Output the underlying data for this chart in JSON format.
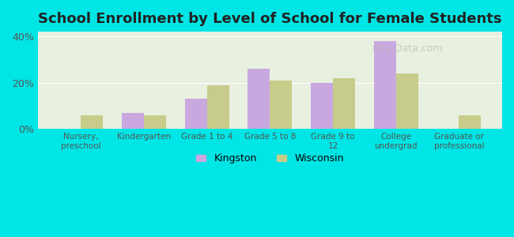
{
  "title": "School Enrollment by Level of School for Female Students",
  "categories": [
    "Nursery,\npreschool",
    "Kindergarten",
    "Grade 1 to 4",
    "Grade 5 to 8",
    "Grade 9 to\n12",
    "College\nundergrad",
    "Graduate or\nprofessional"
  ],
  "kingston": [
    0,
    7,
    13,
    26,
    20,
    38,
    0
  ],
  "wisconsin": [
    6,
    6,
    19,
    21,
    22,
    24,
    6
  ],
  "kingston_color": "#c9a8e0",
  "wisconsin_color": "#c8cc8a",
  "background_color": "#00e5e5",
  "plot_bg_color": "#e8f0e0",
  "ylim": [
    0,
    42
  ],
  "yticks": [
    0,
    20,
    40
  ],
  "ytick_labels": [
    "0%",
    "20%",
    "40%"
  ],
  "bar_width": 0.35,
  "title_fontsize": 13,
  "watermark": "City-Data.com",
  "legend_labels": [
    "Kingston",
    "Wisconsin"
  ]
}
